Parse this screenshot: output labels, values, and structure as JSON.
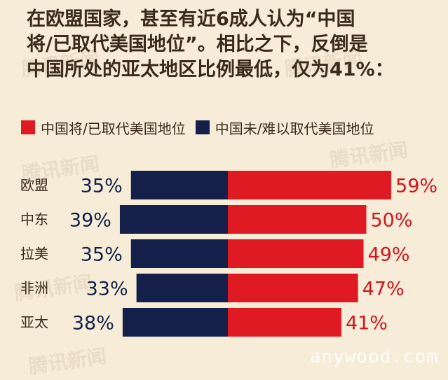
{
  "title_lines": [
    "在欧盟国家，甚至有近6成人认为“中国",
    "将/已取代美国地位”。相比之下，反倒是",
    "中国所处的亚太地区比例最低，仅为41%："
  ],
  "watermark": "腾讯新闻",
  "site": "anywood.com",
  "colors": {
    "red": "#e01a22",
    "navy": "#14204a",
    "background": "#f6ecd7",
    "label_red": "#d0161e",
    "label_navy": "#14204a"
  },
  "chart_data": {
    "type": "bar",
    "orientation": "horizontal-diverging",
    "categories": [
      "欧盟",
      "中东",
      "拉美",
      "非洲",
      "亚太"
    ],
    "series": [
      {
        "name": "中国将/已取代美国地位",
        "values": [
          59,
          50,
          49,
          47,
          41
        ],
        "color": "#e01a22"
      },
      {
        "name": "中国未/难以取代美国地位",
        "values": [
          35,
          39,
          35,
          33,
          38
        ],
        "color": "#14204a"
      }
    ],
    "value_suffix": "%",
    "legend": "top-left"
  }
}
